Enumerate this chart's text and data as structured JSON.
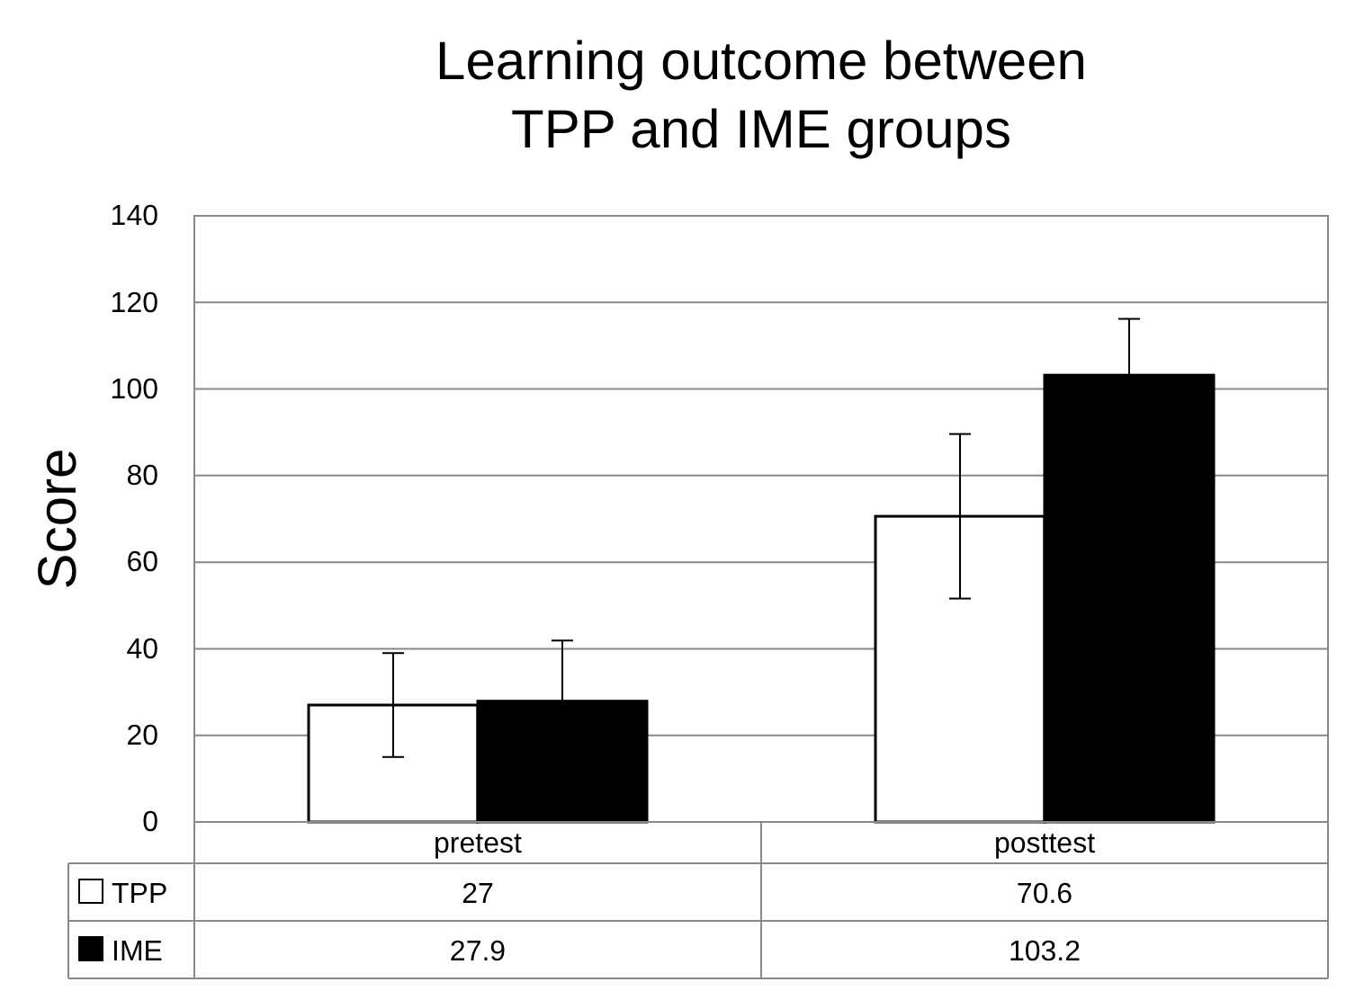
{
  "chart_data": {
    "type": "bar",
    "title": "Learning outcome between TPP and IME groups",
    "ylabel": "Score",
    "categories": [
      "pretest",
      "posttest"
    ],
    "series": [
      {
        "name": "TPP",
        "color": "#ffffff",
        "values": [
          27,
          70.6
        ],
        "errors": [
          12,
          19
        ]
      },
      {
        "name": "IME",
        "color": "#000000",
        "values": [
          27.9,
          103.2
        ],
        "errors": [
          14,
          13
        ]
      }
    ],
    "ylim": [
      0,
      140
    ],
    "yticks": [
      0,
      20,
      40,
      60,
      80,
      100,
      120,
      140
    ],
    "grid": "y",
    "legend": "bottom left",
    "data_labels": true
  }
}
